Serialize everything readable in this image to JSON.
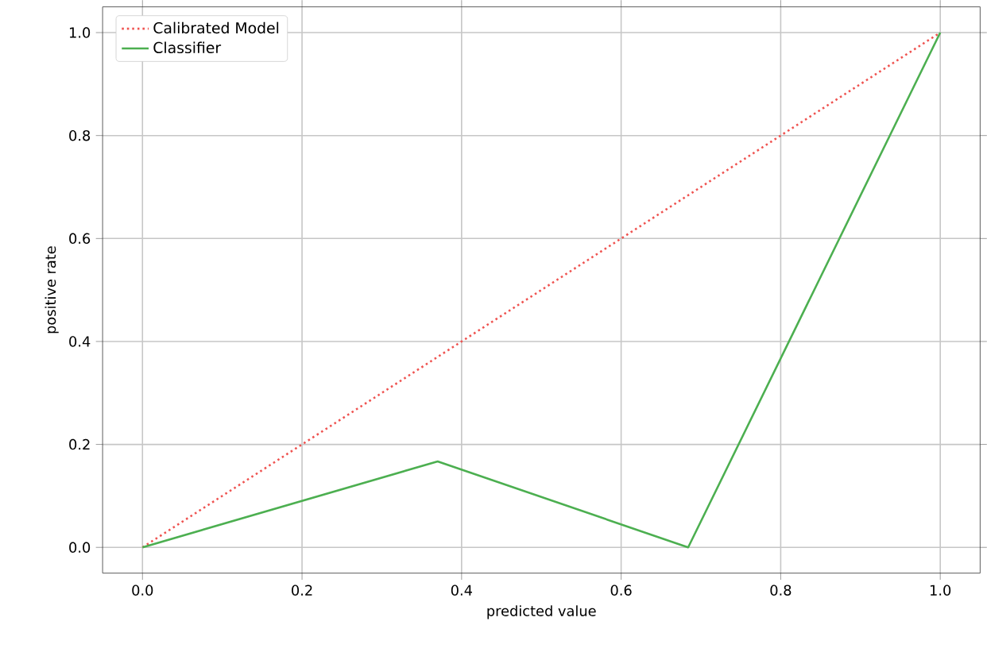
{
  "chart_data": {
    "type": "line",
    "xlabel": "predicted value",
    "ylabel": "positive rate",
    "xlim": [
      -0.05,
      1.05
    ],
    "ylim": [
      -0.05,
      1.05
    ],
    "xticks": [
      {
        "value": 0,
        "label": "0.0"
      },
      0.2,
      0.4,
      0.6,
      0.8,
      {
        "value": 1,
        "label": "1.0"
      }
    ],
    "yticks": [
      {
        "value": 0,
        "label": "0.0"
      },
      0.2,
      0.4,
      0.6,
      0.8,
      {
        "value": 1,
        "label": "1.0"
      }
    ],
    "grid": true,
    "legend": "top left",
    "marker": "none",
    "series": [
      {
        "name": "Calibrated Model",
        "color": "#ef5350",
        "line_style": "dotted",
        "x": [
          0,
          1
        ],
        "values": [
          0,
          1
        ]
      },
      {
        "name": "Classifier",
        "color": "#4caf50",
        "line_style": "solid",
        "x": [
          0,
          0.37,
          0.684,
          1
        ],
        "values": [
          0,
          0.167,
          0,
          1
        ]
      }
    ]
  }
}
